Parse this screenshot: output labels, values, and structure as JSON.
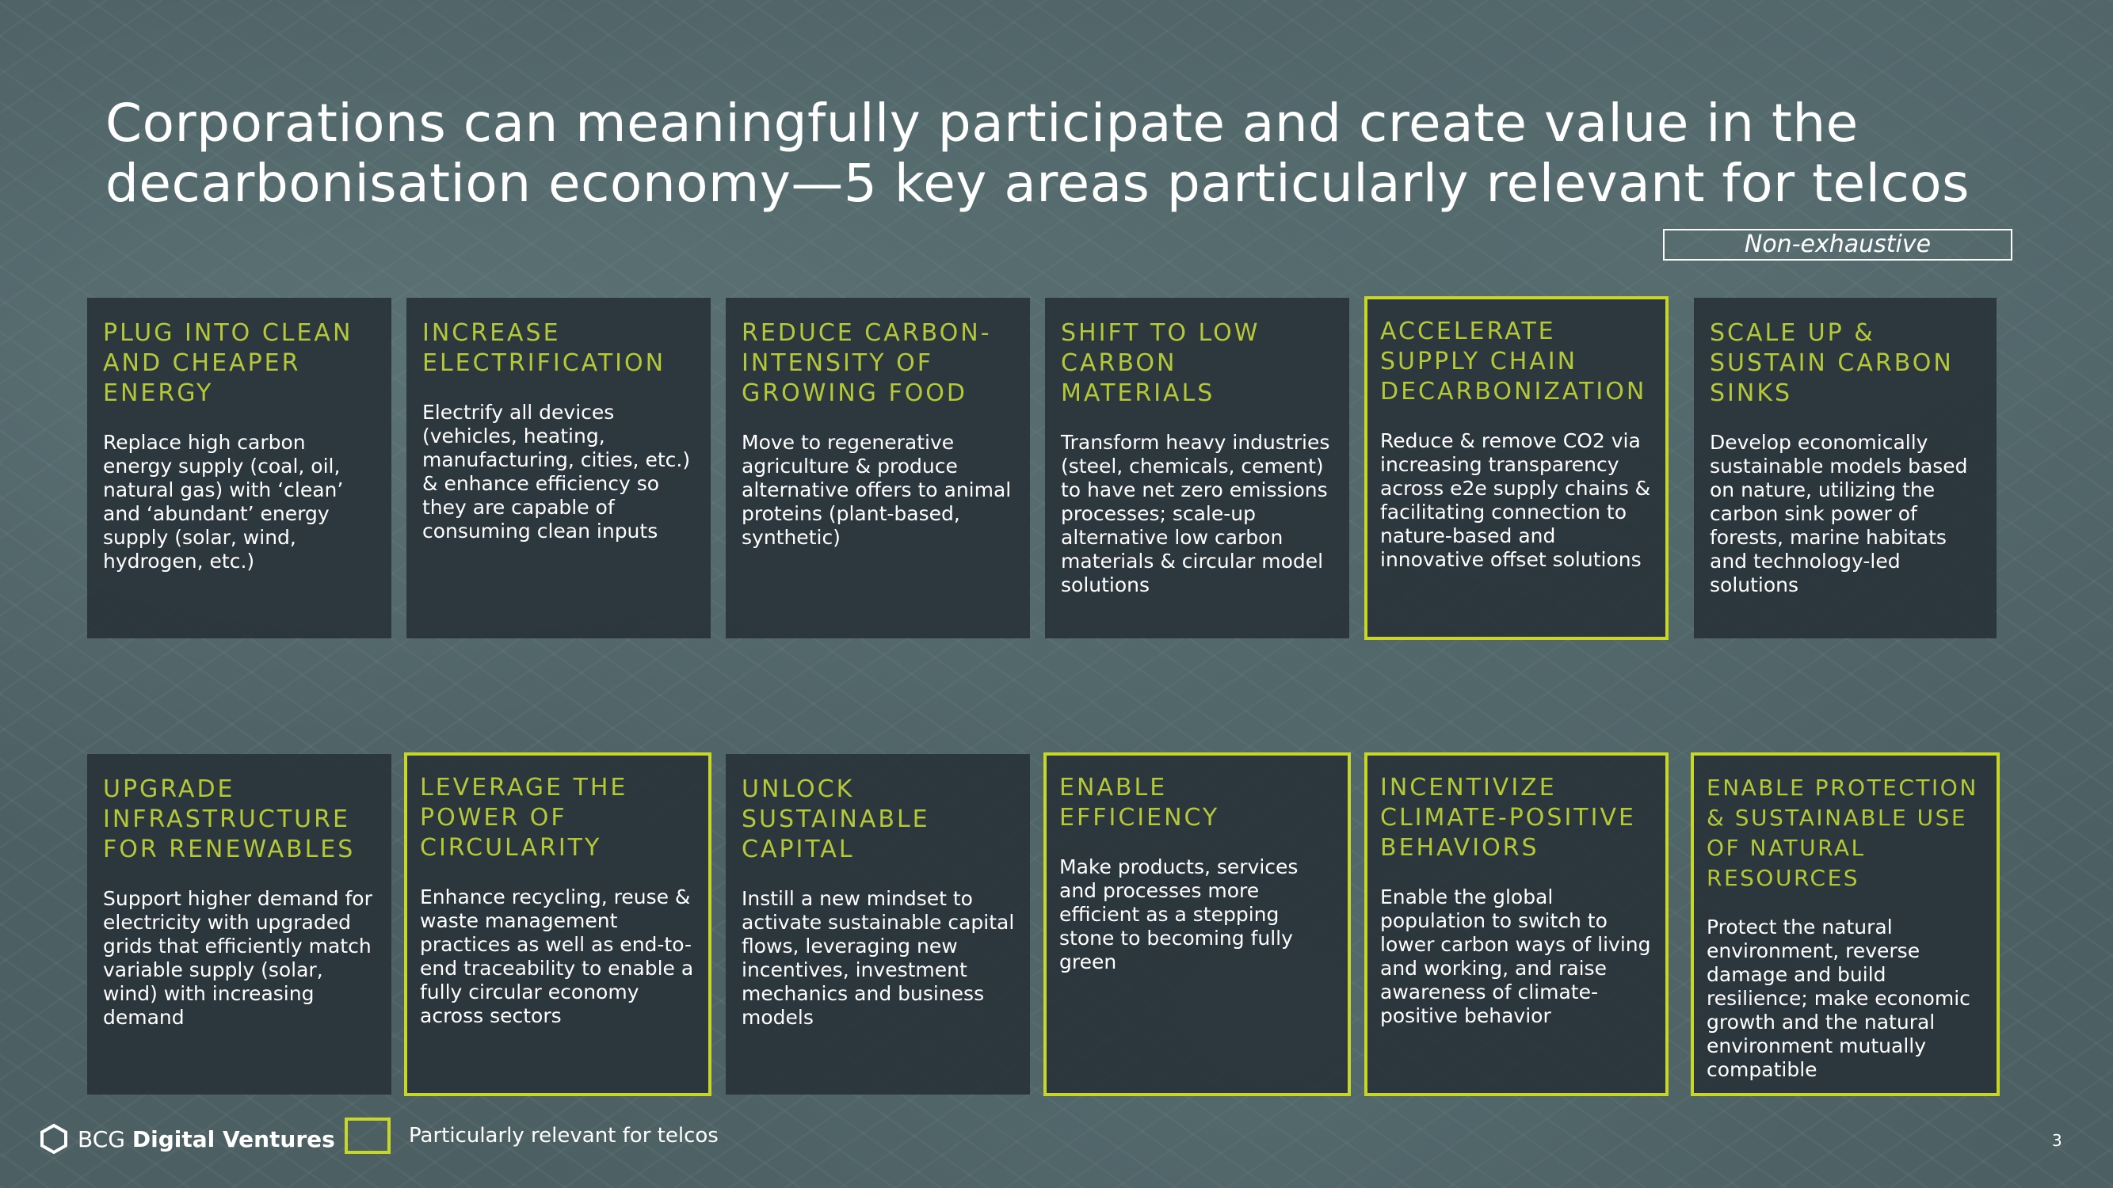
{
  "title": "Corporations can meaningfully participate and create value in the decarbonisation economy—5  key areas particularly relevant for telcos",
  "note": "Non-exhaustive",
  "row1": [
    {
      "title": "PLUG INTO CLEAN AND CHEAPER ENERGY",
      "desc": "Replace high carbon energy supply (coal, oil, natural gas) with ‘clean’ and ‘abundant’ energy supply (solar, wind, hydrogen, etc.)",
      "highlighted": false
    },
    {
      "title": "INCREASE ELECTRIFICATION",
      "desc": "Electrify all devices (vehicles, heating, manufacturing, cities, etc.) & enhance efficiency so they are capable of consuming clean inputs",
      "highlighted": false
    },
    {
      "title": "REDUCE CARBON-INTENSITY OF GROWING FOOD",
      "desc": "Move to regenerative agriculture & produce alternative offers to animal proteins (plant-based, synthetic)",
      "highlighted": false
    },
    {
      "title": "SHIFT TO LOW CARBON MATERIALS",
      "desc": "Transform heavy industries (steel, chemicals, cement) to have net zero emissions processes; scale-up alternative low carbon materials & circular model solutions",
      "highlighted": false
    },
    {
      "title": "ACCELERATE SUPPLY CHAIN DECARBONIZATION",
      "desc": "Reduce & remove CO2 via increasing transparency across e2e supply chains & facilitating connection to nature-based and innovative offset solutions",
      "highlighted": true
    },
    {
      "title": "SCALE UP & SUSTAIN CARBON SINKS",
      "desc": "Develop economically sustainable models based on nature, utilizing the carbon sink power of forests, marine habitats and technology-led solutions",
      "highlighted": false
    }
  ],
  "row2": [
    {
      "title": "UPGRADE INFRASTRUCTURE FOR RENEWABLES",
      "desc": "Support higher demand for electricity with upgraded grids that efficiently match variable supply (solar, wind) with increasing demand",
      "highlighted": false
    },
    {
      "title": "LEVERAGE THE POWER OF CIRCULARITY",
      "desc": "Enhance recycling, reuse & waste management practices as well as end-to-end traceability to enable a fully circular economy across sectors",
      "highlighted": true
    },
    {
      "title": "UNLOCK SUSTAINABLE CAPITAL",
      "desc": "Instill a new mindset to activate sustainable capital flows, leveraging new incentives, investment mechanics and business models",
      "highlighted": false
    },
    {
      "title": "ENABLE EFFICIENCY",
      "desc": "Make products, services and processes more efficient as a stepping stone to becoming fully green",
      "highlighted": true
    },
    {
      "title": "INCENTIVIZE CLIMATE-POSITIVE BEHAVIORS",
      "desc": "Enable the global population to switch to lower carbon ways of living and working, and raise awareness of climate-positive behavior",
      "highlighted": true
    },
    {
      "title": "ENABLE PROTECTION & SUSTAINABLE USE OF NATURAL RESOURCES",
      "desc": "Protect the natural environment, reverse damage and build resilience; make economic growth and the natural environment mutually compatible",
      "highlighted": true
    }
  ],
  "footer": {
    "logo_prefix": "BCG",
    "logo_name": "Digital Ventures",
    "legend_label": "Particularly relevant for telcos",
    "page_number": "3"
  },
  "colors": {
    "accent": "#c8d62a",
    "title_text": "#b4c83a",
    "card_bg": "#29343a"
  },
  "icons": {
    "logo": "hexagon-logo-icon"
  }
}
